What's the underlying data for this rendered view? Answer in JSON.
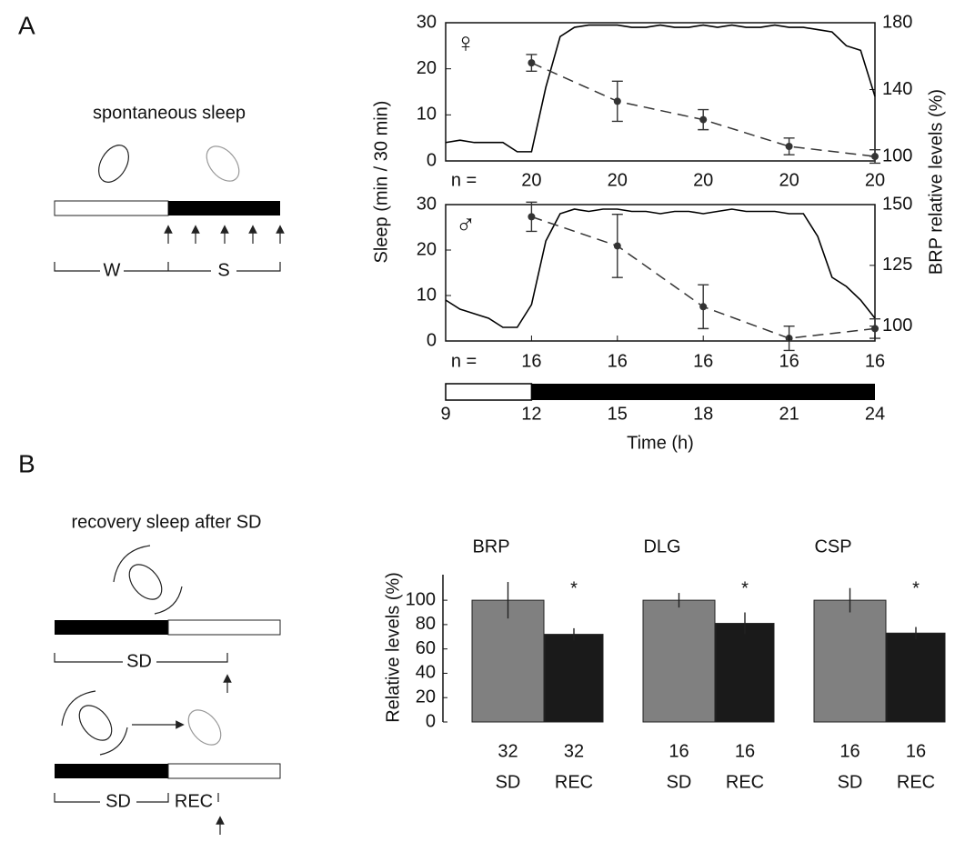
{
  "panel_labels": [
    "A",
    "B"
  ],
  "diagrams": {
    "spontaneous": {
      "title": "spontaneous sleep",
      "wake": "W",
      "sleep": "S"
    },
    "recovery": {
      "title": "recovery sleep after SD",
      "sd_top": "SD",
      "sd_bottom": "SD",
      "rec": "REC"
    }
  },
  "chart_data": [
    {
      "type": "line",
      "symbol": "♀",
      "ylabel": "Sleep (min / 30 min)",
      "y2label": "BRP relative levels (%)",
      "xlim": [
        9,
        24
      ],
      "ylim": [
        0,
        30
      ],
      "yticks": [
        0,
        10,
        20,
        30
      ],
      "y2lim": [
        97.3,
        180
      ],
      "y2ticks": [
        100,
        140,
        180
      ],
      "x": [
        9,
        9.5,
        10,
        10.5,
        11,
        11.5,
        12,
        12.5,
        13,
        13.5,
        14,
        14.5,
        15,
        15.5,
        16,
        16.5,
        17,
        17.5,
        18,
        18.5,
        19,
        19.5,
        20,
        20.5,
        21,
        21.5,
        22,
        22.5,
        23,
        23.5,
        24
      ],
      "series": [
        {
          "color": "#000000",
          "values": [
            4,
            4.5,
            4,
            4,
            4,
            2,
            2,
            16,
            27,
            29,
            29.5,
            29.5,
            29.5,
            29,
            29,
            29.5,
            29,
            29,
            29.5,
            29,
            29.5,
            29,
            29,
            29.5,
            29,
            29,
            28.5,
            28,
            25,
            24,
            14
          ]
        },
        {
          "color": "#333333",
          "axis": "y2",
          "dashed": true,
          "x": [
            12,
            15,
            18,
            21,
            24
          ],
          "values": [
            156,
            133,
            122,
            106,
            100
          ],
          "errors": [
            5,
            12,
            6,
            5,
            4
          ]
        }
      ],
      "n_label": "n =",
      "n": [
        20,
        20,
        20,
        20,
        20
      ]
    },
    {
      "type": "line",
      "symbol": "♂",
      "xlabel": "Time (h)",
      "xlim": [
        9,
        24
      ],
      "xticks": [
        9,
        12,
        15,
        18,
        21,
        24
      ],
      "ylim": [
        0,
        30
      ],
      "yticks": [
        0,
        10,
        20,
        30
      ],
      "y2lim": [
        93.9,
        150
      ],
      "y2ticks": [
        100,
        125,
        150
      ],
      "x": [
        9,
        9.5,
        10,
        10.5,
        11,
        11.5,
        12,
        12.5,
        13,
        13.5,
        14,
        14.5,
        15,
        15.5,
        16,
        16.5,
        17,
        17.5,
        18,
        18.5,
        19,
        19.5,
        20,
        20.5,
        21,
        21.5,
        22,
        22.5,
        23,
        23.5,
        24
      ],
      "series": [
        {
          "color": "#000000",
          "values": [
            9,
            7,
            6,
            5,
            3,
            3,
            8,
            22,
            28,
            29,
            28.5,
            29,
            29,
            28.5,
            28.5,
            28,
            28.5,
            28.5,
            28,
            28.5,
            29,
            28.5,
            28.5,
            28.5,
            28,
            28,
            23,
            14,
            12,
            9,
            5
          ]
        },
        {
          "color": "#333333",
          "axis": "y2",
          "dashed": true,
          "x": [
            12,
            15,
            18,
            21,
            24
          ],
          "values": [
            145,
            133,
            108,
            95,
            99
          ],
          "errors": [
            6,
            13,
            9,
            5,
            4
          ]
        }
      ],
      "n_label": "n =",
      "n": [
        16,
        16,
        16,
        16,
        16
      ],
      "light_phase": [
        9,
        12
      ],
      "dark_phase": [
        12,
        24
      ]
    },
    {
      "type": "bar",
      "ylabel": "Relative levels (%)",
      "categories": [
        "BRP",
        "DLG",
        "CSP"
      ],
      "ylim": [
        0,
        121
      ],
      "yticks": [
        0,
        20,
        40,
        60,
        80,
        100
      ],
      "significance": "*",
      "series": [
        {
          "label": "SD",
          "color": "#808080",
          "values": [
            100,
            100,
            100
          ],
          "errors": [
            15,
            6,
            10
          ],
          "n": [
            32,
            16,
            16
          ]
        },
        {
          "label": "REC",
          "color": "#1a1a1a",
          "values": [
            72,
            81,
            73
          ],
          "errors": [
            5,
            9,
            5
          ],
          "n": [
            32,
            16,
            16
          ]
        }
      ]
    }
  ]
}
